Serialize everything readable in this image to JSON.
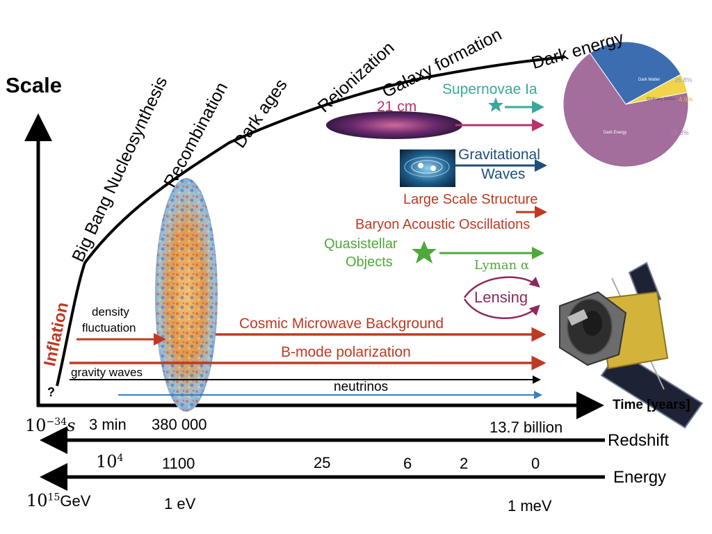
{
  "axes": {
    "scale_label": "Scale",
    "time_label": "Time [years]",
    "redshift_label": "Redshift",
    "energy_label": "Energy",
    "origin_mark": "?"
  },
  "eras": {
    "inflation": "Inflation",
    "bbn": "Big Bang Nucleosynthesis",
    "recombination": "Recombination",
    "dark_ages": "Dark ages",
    "reionization": "Reionization",
    "galaxy_formation": "Galaxy formation",
    "dark_energy": "Dark energy"
  },
  "time_ticks": {
    "t0_base": "10",
    "t0_exp": "−34",
    "t0_unit": "s",
    "t1": "3 min",
    "t2": "380 000",
    "t3": "13.7 billion"
  },
  "redshift_ticks": {
    "z0_base": "10",
    "z0_exp": "4",
    "z1": "1100",
    "z2": "25",
    "z3": "6",
    "z4": "2",
    "z5": "0"
  },
  "energy_ticks": {
    "e0_base": "10",
    "e0_exp": "15",
    "e0_unit": "GeV",
    "e1": "1 eV",
    "e2": "1 meV"
  },
  "probes": {
    "supernovae": "Supernovae Ia",
    "cm21": "21 cm",
    "grav_waves_1": "Gravitational",
    "grav_waves_2": "Waves",
    "lss": "Large Scale Structure",
    "bao": "Baryon Acoustic Oscillations",
    "qso_1": "Quasistellar",
    "qso_2": "Objects",
    "lyman": "Lyman α",
    "lensing": "Lensing",
    "density_1": "density",
    "density_2": "fluctuation",
    "cmb": "Cosmic Microwave Background",
    "bmode": "B-mode polarization",
    "gravity_waves": "gravity waves",
    "neutrinos": "neutrinos"
  },
  "pie": {
    "slices": [
      {
        "name": "Dark Matter",
        "value": 26.8,
        "label": "26.8%",
        "color": "#3c6db0"
      },
      {
        "name": "Ordinary Matter",
        "value": 4.9,
        "label": "4.9%",
        "color": "#f0d44a"
      },
      {
        "name": "Dark Energy",
        "value": 68.3,
        "label": "68.3%",
        "color": "#a36d9c"
      }
    ]
  },
  "colors": {
    "red": "#bf3a22",
    "teal": "#3aa89a",
    "magenta": "#b8336a",
    "navy": "#1f4e79",
    "green": "#4fa83a",
    "purple": "#8c2a5c",
    "blue": "#3a7ec0"
  }
}
